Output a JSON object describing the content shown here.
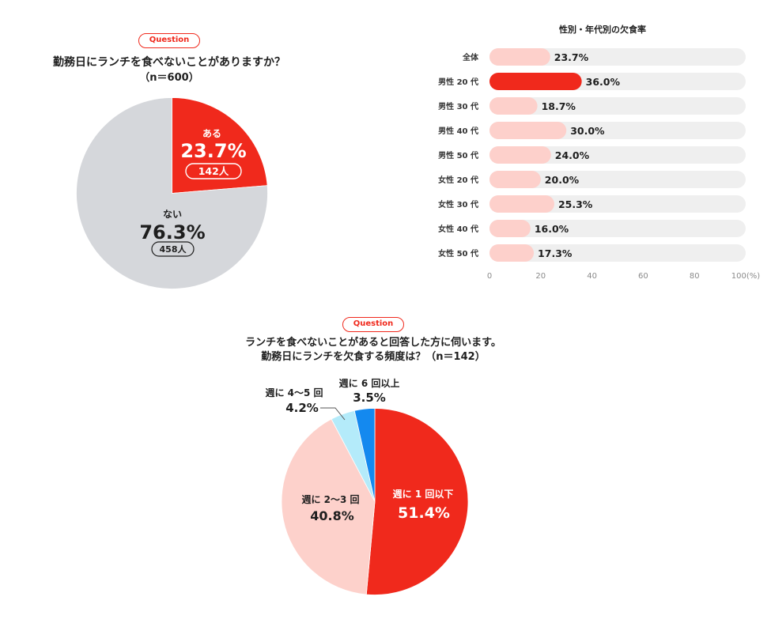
{
  "question_badge": "Question",
  "colors": {
    "accent_red": "#f0291c",
    "text_dark": "#1e1e1e",
    "axis_grey": "#8a8a8a",
    "leader_line": "#555555"
  },
  "chart_data": [
    {
      "type": "pie",
      "title": [
        "勤務日にランチを食べないことがありますか？",
        "（n＝600）"
      ],
      "slices": [
        {
          "label": "ある",
          "value": 23.7,
          "value_label": "23.7%",
          "count_label": "142人",
          "color": "#f0291c"
        },
        {
          "label": "ない",
          "value": 76.3,
          "value_label": "76.3%",
          "count_label": "458人",
          "color": "#d5d7db"
        }
      ]
    },
    {
      "type": "bar",
      "orientation": "horizontal",
      "title": "性別・年代別の欠食率",
      "categories": [
        "全体",
        "男性 20 代",
        "男性 30 代",
        "男性 40 代",
        "男性 50 代",
        "女性 20 代",
        "女性 30 代",
        "女性 40 代",
        "女性 50 代"
      ],
      "values": [
        23.7,
        36.0,
        18.7,
        30.0,
        24.0,
        20.0,
        25.3,
        16.0,
        17.3
      ],
      "value_labels": [
        "23.7%",
        "36.0%",
        "18.7%",
        "30.0%",
        "24.0%",
        "20.0%",
        "25.3%",
        "16.0%",
        "17.3%"
      ],
      "xlim": [
        0,
        100
      ],
      "x_ticks": [
        0,
        20,
        40,
        60,
        80,
        100
      ],
      "x_tick_labels": [
        "0",
        "20",
        "40",
        "60",
        "80",
        "100(%)"
      ],
      "grid": false,
      "highlight_index": 1,
      "colors": {
        "bar": "#fdd0cb",
        "highlight": "#f0291c",
        "track": "#efefef"
      }
    },
    {
      "type": "pie",
      "title": [
        "ランチを食べないことがあると回答した方に伺います。",
        "勤務日にランチを欠食する頻度は？（n＝142）"
      ],
      "slices": [
        {
          "label": "週に 1 回以下",
          "value": 51.4,
          "value_label": "51.4%",
          "color": "#f0291c"
        },
        {
          "label": "週に 2〜3 回",
          "value": 40.8,
          "value_label": "40.8%",
          "color": "#fdd1cb"
        },
        {
          "label": "週に 4〜5 回",
          "value": 4.2,
          "value_label": "4.2%",
          "color": "#b4ebfa"
        },
        {
          "label": "週に 6 回以上",
          "value": 3.5,
          "value_label": "3.5%",
          "color": "#1489ef"
        }
      ]
    }
  ]
}
